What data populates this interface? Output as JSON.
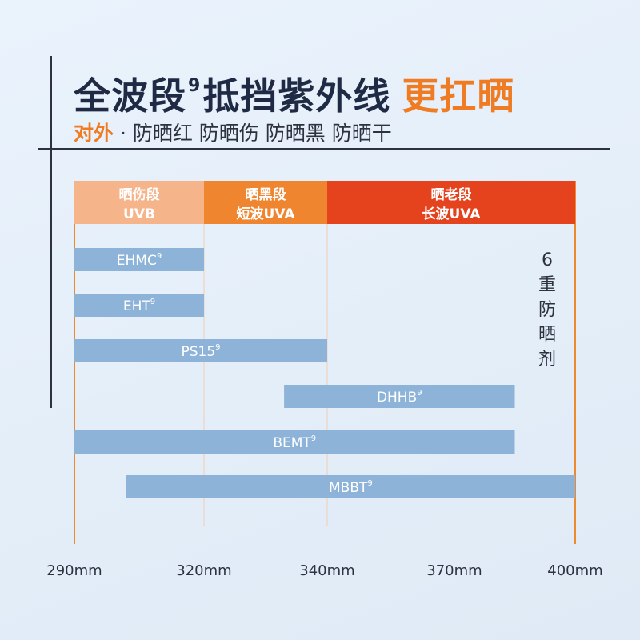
{
  "header": {
    "title_main": "全波段",
    "title_sup": "9",
    "title_rest": "抵挡紫外线",
    "title_accent": "更扛晒",
    "subtitle_lead": "对外",
    "subtitle_rest": " · 防晒红 防晒伤 防晒黑 防晒干"
  },
  "side_label": "6重防晒剂",
  "colors": {
    "band_uvb": "#f5b48a",
    "band_uva2": "#ef852f",
    "band_uva1": "#e4431d",
    "bar": "#8eb3d8",
    "axis": "#ef8a2c",
    "grid": "#f0cdb3"
  },
  "chart_data": {
    "type": "bar",
    "orientation": "horizontal-range",
    "x_ticks": [
      "290mm",
      "320mm",
      "340mm",
      "370mm",
      "400mm"
    ],
    "bands": [
      {
        "label1": "晒伤段",
        "label2": "UVB",
        "from": "290mm",
        "to": "320mm"
      },
      {
        "label1": "晒黑段",
        "label2": "短波UVA",
        "from": "320mm",
        "to": "340mm"
      },
      {
        "label1": "晒老段",
        "label2": "长波UVA",
        "from": "340mm",
        "to": "400mm"
      }
    ],
    "series": [
      {
        "name": "EHMC",
        "sup": "9",
        "from": 290,
        "to": 320
      },
      {
        "name": "EHT",
        "sup": "9",
        "from": 290,
        "to": 320
      },
      {
        "name": "PS15",
        "sup": "9",
        "from": 290,
        "to": 340
      },
      {
        "name": "DHHB",
        "sup": "9",
        "from": 333,
        "to": 385
      },
      {
        "name": "BEMT",
        "sup": "9",
        "from": 290,
        "to": 385
      },
      {
        "name": "MBBT",
        "sup": "9",
        "from": 302,
        "to": 400
      }
    ]
  }
}
